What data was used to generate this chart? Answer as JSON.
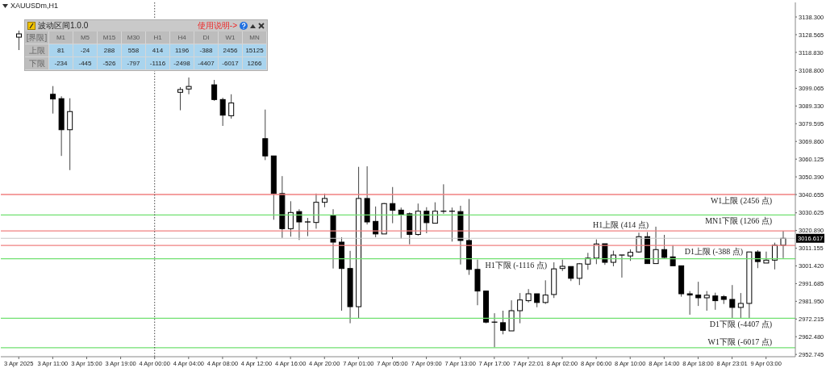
{
  "chart_data": [
    {
      "type": "candlestick",
      "title": "XAUUSDm,H1",
      "categories": [
        "3 Apr 2025",
        null,
        null,
        null,
        "3 Apr 11:00",
        null,
        null,
        null,
        "3 Apr 15:00",
        null,
        null,
        null,
        "3 Apr 19:00",
        null,
        null,
        null,
        "4 Apr 00:00",
        null,
        null,
        null,
        "4 Apr 04:00",
        null,
        null,
        null,
        "4 Apr 08:00",
        null,
        null,
        null,
        "4 Apr 12:00",
        null,
        null,
        null,
        "4 Apr 16:00",
        null,
        null,
        null,
        "4 Apr 20:00",
        null,
        null,
        null,
        "7 Apr 01:00",
        null,
        null,
        null,
        "7 Apr 05:00",
        null,
        null,
        null,
        "7 Apr 09:00",
        null,
        null,
        null,
        "7 Apr 13:00",
        null,
        null,
        null,
        "7 Apr 17:00",
        null,
        null,
        null,
        "7 Apr 22:01",
        null,
        null,
        null,
        "8 Apr 02:00",
        null,
        null,
        null,
        "8 Apr 06:00",
        null,
        null,
        null,
        "8 Apr 10:00",
        null,
        null,
        null,
        "8 Apr 14:00",
        null,
        null,
        null,
        "8 Apr 18:00",
        null,
        null,
        null,
        "8 Apr 23:01",
        null,
        null,
        null,
        "9 Apr 03:00",
        null,
        null
      ],
      "ohlc": [
        [
          3127.2,
          3130.8,
          3120.1,
          3129.0
        ],
        null,
        null,
        null,
        [
          3095.8,
          3100.3,
          3085.2,
          3093.2
        ],
        [
          3093.4,
          3094.7,
          3061.9,
          3076.3
        ],
        [
          3076.3,
          3093.6,
          3054.1,
          3086.3
        ],
        null,
        null,
        null,
        null,
        null,
        null,
        null,
        null,
        null,
        null,
        null,
        null,
        [
          3096.9,
          3099.7,
          3087.0,
          3098.4
        ],
        [
          3098.7,
          3105.0,
          3095.8,
          3100.1
        ],
        null,
        null,
        [
          3101.0,
          3103.7,
          3092.2,
          3092.9
        ],
        [
          3092.9,
          3093.9,
          3078.4,
          3084.3
        ],
        [
          3084.0,
          3095.8,
          3082.4,
          3091.0
        ],
        null,
        null,
        null,
        [
          3071.4,
          3087.4,
          3059.6,
          3061.9
        ],
        [
          3061.9,
          3061.9,
          3026.8,
          3041.2
        ],
        [
          3041.2,
          3050.8,
          3016.8,
          3021.9
        ],
        [
          3021.9,
          3037.0,
          3017.5,
          3030.8
        ],
        [
          3031.3,
          3032.6,
          3015.7,
          3025.6
        ],
        [
          3025.6,
          3027.8,
          3017.8,
          3025.6
        ],
        [
          3025.3,
          3041.2,
          3021.9,
          3036.4
        ],
        [
          3036.4,
          3041.2,
          3033.7,
          3038.5
        ],
        [
          3028.9,
          3032.6,
          3000.0,
          3014.5
        ],
        [
          3014.5,
          3017.2,
          2976.8,
          3000.0
        ],
        [
          3000.0,
          3009.7,
          2969.9,
          2979.0
        ],
        [
          2979.0,
          3055.9,
          2972.4,
          3038.5
        ],
        [
          3038.5,
          3056.2,
          3024.2,
          3025.6
        ],
        [
          3025.9,
          3034.1,
          3017.2,
          3019.0
        ],
        [
          3019.0,
          3036.0,
          3019.0,
          3035.7
        ],
        [
          3035.7,
          3044.8,
          3024.9,
          3032.0
        ],
        [
          3032.1,
          3033.5,
          3016.4,
          3029.8
        ],
        [
          3030.1,
          3030.8,
          3013.3,
          3018.7
        ],
        [
          3018.7,
          3035.7,
          3018.0,
          3031.5
        ],
        [
          3031.5,
          3033.7,
          3019.4,
          3025.2
        ],
        [
          3024.9,
          3036.4,
          3024.9,
          3031.5
        ],
        [
          3031.5,
          3046.3,
          3030.1,
          3031.5
        ],
        [
          3031.5,
          3033.5,
          3014.8,
          3031.5
        ],
        [
          3031.3,
          3034.5,
          3002.2,
          3015.4
        ],
        [
          3015.4,
          3038.2,
          2996.5,
          2999.5
        ],
        [
          2999.5,
          3004.9,
          2979.8,
          2987.6
        ],
        [
          2987.6,
          2987.6,
          2969.9,
          2970.5
        ],
        [
          2970.5,
          2975.4,
          2956.6,
          2970.5
        ],
        [
          2970.2,
          2976.8,
          2963.8,
          2966.0
        ],
        [
          2965.7,
          2982.5,
          2965.7,
          2976.8
        ],
        [
          2976.8,
          2986.5,
          2969.9,
          2982.7
        ],
        [
          2982.3,
          2988.7,
          2981.3,
          2986.1
        ],
        [
          2986.1,
          2986.1,
          2978.7,
          2981.3
        ],
        [
          2981.3,
          2993.5,
          2980.5,
          2985.4
        ],
        [
          2985.7,
          3003.4,
          2983.8,
          2999.8
        ],
        [
          3000.0,
          3004.9,
          2998.6,
          3001.2
        ],
        [
          3001.1,
          3001.1,
          2993.1,
          2994.6
        ],
        [
          2994.6,
          3003.0,
          2990.9,
          3002.6
        ],
        [
          3002.4,
          3008.6,
          2999.3,
          3005.7
        ],
        [
          3005.7,
          3016.0,
          3002.4,
          3013.5
        ],
        [
          3013.6,
          3013.6,
          3002.0,
          3003.4
        ],
        [
          3003.4,
          3009.8,
          3001.2,
          3007.4
        ],
        [
          3007.4,
          3007.4,
          2995.0,
          3007.4
        ],
        [
          3006.9,
          3010.5,
          3004.2,
          3008.9
        ],
        [
          3009.1,
          3019.7,
          3008.6,
          3017.5
        ],
        [
          3017.5,
          3020.0,
          3002.7,
          3002.7
        ],
        [
          3002.7,
          3023.0,
          3002.7,
          3010.4
        ],
        [
          3010.4,
          3018.5,
          3005.7,
          3006.1
        ],
        [
          3006.4,
          3012.8,
          3001.5,
          3001.5
        ],
        [
          3001.5,
          3001.5,
          2984.5,
          2986.1
        ],
        [
          2986.1,
          2987.6,
          2974.6,
          2985.4
        ],
        [
          2985.4,
          2992.7,
          2979.4,
          2983.9
        ],
        [
          2983.9,
          2987.6,
          2976.8,
          2985.3
        ],
        [
          2984.9,
          2986.7,
          2977.3,
          2982.3
        ],
        [
          2984.5,
          2985.4,
          2980.5,
          2983.0
        ],
        [
          2983.0,
          2990.9,
          2972.8,
          2978.6
        ],
        [
          2978.6,
          2986.5,
          2972.8,
          2980.8
        ],
        [
          2980.8,
          3009.1,
          2972.8,
          3009.1
        ],
        [
          3009.1,
          3010.1,
          3000.2,
          3003.8
        ],
        [
          3003.0,
          3009.3,
          3003.0,
          3004.6
        ],
        [
          3004.6,
          3014.2,
          2999.5,
          3012.8
        ],
        [
          3012.8,
          3020.7,
          3005.7,
          3016.6
        ]
      ],
      "ylim": [
        2951.5,
        3146.3
      ],
      "yticks": [
        {
          "value": 2952.745,
          "label": "2952.745"
        },
        {
          "value": 2962.48,
          "label": "2962.480"
        },
        {
          "value": 2972.215,
          "label": "2972.215"
        },
        {
          "value": 2981.95,
          "label": "2981.950"
        },
        {
          "value": 2991.685,
          "label": "2991.685"
        },
        {
          "value": 3001.42,
          "label": "3001.420"
        },
        {
          "value": 3011.155,
          "label": "3011.155"
        },
        {
          "value": 3020.89,
          "label": "3020.890"
        },
        {
          "value": 3030.625,
          "label": "3030.625"
        },
        {
          "value": 3040.655,
          "label": "3040.655"
        },
        {
          "value": 3050.39,
          "label": "3050.390"
        },
        {
          "value": 3060.125,
          "label": "3060.125"
        },
        {
          "value": 3069.86,
          "label": "3069.860"
        },
        {
          "value": 3079.595,
          "label": "3079.595"
        },
        {
          "value": 3089.33,
          "label": "3089.330"
        },
        {
          "value": 3099.065,
          "label": "3099.065"
        },
        {
          "value": 3108.8,
          "label": "3108.800"
        },
        {
          "value": 3118.83,
          "label": "3118.830"
        },
        {
          "value": 3128.565,
          "label": "3128.565"
        },
        {
          "value": 3138.3,
          "label": "3138.300"
        }
      ],
      "ref_lines": [
        {
          "axis": "y",
          "value": 3040.7,
          "label": "W1上限 (2456 点)",
          "color": "#f08080"
        },
        {
          "axis": "y",
          "value": 3029.4,
          "label": "MN1下限 (1266 点)",
          "color": "#70e070"
        },
        {
          "axis": "y",
          "value": 3020.7,
          "label": "H1上限 (414 点)",
          "color": "#f08080"
        },
        {
          "axis": "y",
          "value": 3016.617,
          "label": "3016.617",
          "color": "#c8c8c8"
        },
        {
          "axis": "y",
          "value": 3012.7,
          "label": "D1上限 (-388 点)",
          "color": "#f08080"
        },
        {
          "axis": "y",
          "value": 3005.4,
          "label": "H1下限 (-1116 点)",
          "color": "#70e070"
        },
        {
          "axis": "y",
          "value": 2972.6,
          "label": "D1下限 (-4407 点)",
          "color": "#70e070"
        },
        {
          "axis": "y",
          "value": 2956.4,
          "label": "W1下限 (-6017 点)",
          "color": "#70e070"
        },
        {
          "axis": "x",
          "value": "4 Apr 00:00",
          "color": "#444444",
          "line_style": "dotted"
        }
      ]
    },
    {
      "type": "other",
      "title": "波动区间1.0.0",
      "annotations": [
        "使用说明->"
      ],
      "ylabel": "[界限]",
      "categories": [
        "M1",
        "M5",
        "M15",
        "M30",
        "H1",
        "H4",
        "DI",
        "W1",
        "MN"
      ],
      "series": [
        {
          "name": "上限",
          "color": "#a9d4ee",
          "values": [
            81,
            -24,
            288,
            558,
            414,
            1196,
            -388,
            2456,
            15125
          ]
        },
        {
          "name": "下限",
          "color": "#a9d4ee",
          "values": [
            -234,
            -445,
            -526,
            -797,
            -1116,
            -2498,
            -4407,
            -6017,
            1266
          ]
        }
      ],
      "data_labels": true
    }
  ]
}
